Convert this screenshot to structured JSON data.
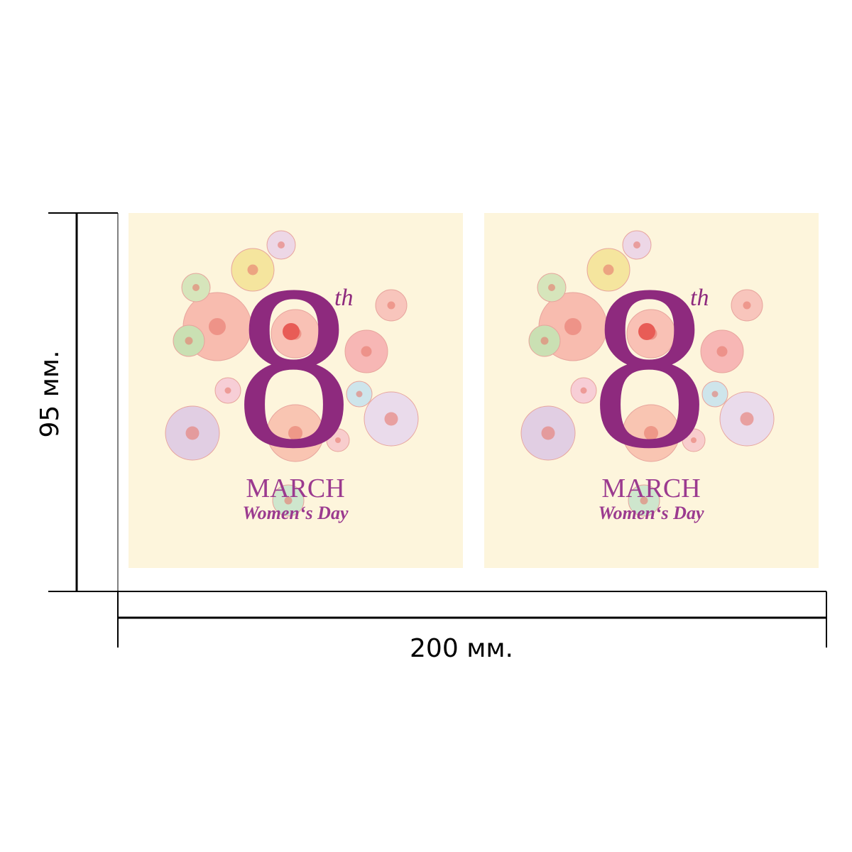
{
  "dimensions": {
    "height": "95 мм.",
    "width": "200 мм."
  },
  "cards": [
    {
      "number": "8",
      "suffix": "th",
      "month": "MARCH",
      "caption": "Women‘s Day"
    },
    {
      "number": "8",
      "suffix": "th",
      "month": "MARCH",
      "caption": "Women‘s Day"
    }
  ]
}
